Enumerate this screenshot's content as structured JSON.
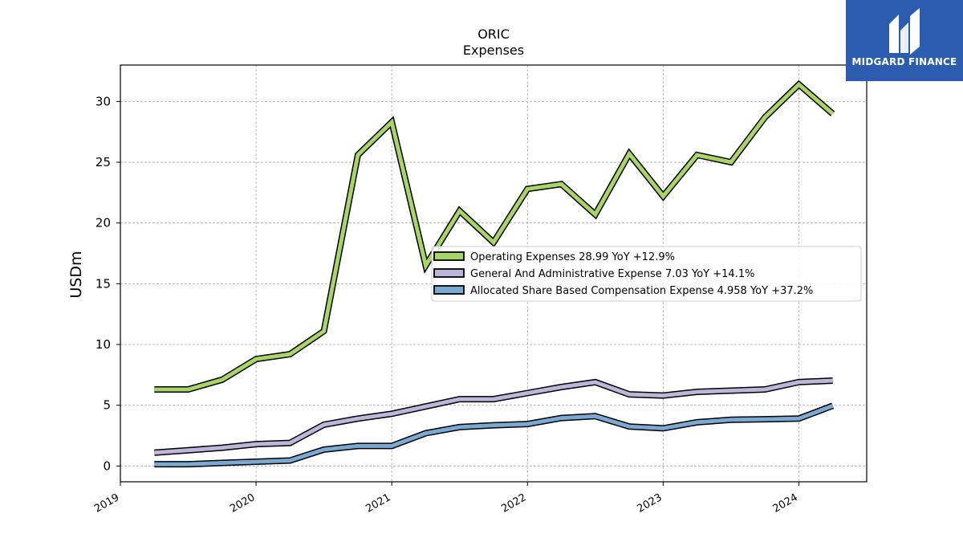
{
  "chart_data": {
    "type": "line",
    "title": "ORIC",
    "subtitle": "Expenses",
    "ylabel": "USDm",
    "xlabel": "",
    "ylim": [
      -1.3,
      33
    ],
    "xlim": [
      2019.0,
      2024.5
    ],
    "yticks": [
      0,
      5,
      10,
      15,
      20,
      25,
      30
    ],
    "xticks": [
      "2019",
      "2020",
      "2021",
      "2022",
      "2023",
      "2024"
    ],
    "grid": true,
    "legend_position": "center-right",
    "x": [
      2019.25,
      2019.5,
      2019.75,
      2020.0,
      2020.25,
      2020.5,
      2020.75,
      2021.0,
      2021.25,
      2021.5,
      2021.75,
      2022.0,
      2022.25,
      2022.5,
      2022.75,
      2023.0,
      2023.25,
      2023.5,
      2023.75,
      2024.0,
      2024.25
    ],
    "series": [
      {
        "name": "Operating Expenses",
        "legend_label": "Operating Expenses  28.99 YoY +12.9%",
        "color": "#a8d468",
        "values": [
          6.3,
          6.3,
          7.1,
          8.8,
          9.2,
          11.1,
          25.6,
          28.3,
          16.5,
          21.0,
          18.4,
          22.8,
          23.2,
          20.7,
          25.7,
          22.2,
          25.6,
          25.0,
          28.7,
          31.4,
          28.99
        ]
      },
      {
        "name": "General And Administrative Expense",
        "legend_label": "General And Administrative Expense  7.03 YoY +14.1%",
        "color": "#bdb6da",
        "values": [
          1.1,
          1.3,
          1.5,
          1.8,
          1.9,
          3.4,
          3.9,
          4.3,
          4.9,
          5.5,
          5.5,
          6.0,
          6.5,
          6.9,
          5.9,
          5.8,
          6.1,
          6.2,
          6.3,
          6.9,
          7.03
        ]
      },
      {
        "name": "Allocated Share Based Compensation Expense",
        "legend_label": "Allocated Share Based Compensation Expense  4.958 YoY +37.2%",
        "color": "#7aaad3",
        "values": [
          0.15,
          0.15,
          0.25,
          0.35,
          0.45,
          1.35,
          1.65,
          1.65,
          2.7,
          3.2,
          3.35,
          3.45,
          3.95,
          4.1,
          3.25,
          3.1,
          3.6,
          3.8,
          3.85,
          3.9,
          4.958
        ]
      }
    ]
  },
  "logo": {
    "text": "MIDGARD FINANCE",
    "background": "#2b5cb0"
  }
}
